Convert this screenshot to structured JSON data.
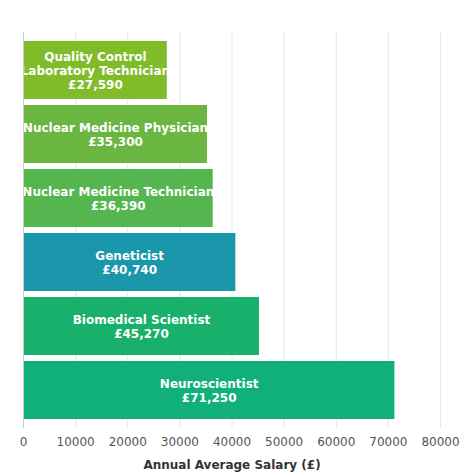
{
  "chart_data": {
    "type": "bar",
    "orientation": "horizontal",
    "categories": [
      "Quality Control Laboratory Technician",
      "Nuclear Medicine Physician",
      "Nuclear Medicine Technician",
      "Geneticist",
      "Biomedical Scientist",
      "Neuroscientist"
    ],
    "values": [
      27590,
      35300,
      36390,
      40740,
      45270,
      71250
    ],
    "value_labels": [
      "£27,590",
      "£35,300",
      "£36,390",
      "£40,740",
      "£45,270",
      "£71,250"
    ],
    "colors": [
      "#80bb2a",
      "#6bb541",
      "#55b54f",
      "#1b97ab",
      "#18b06b",
      "#11b07a"
    ],
    "x_label": "Annual Average Salary (£)",
    "xlim": [
      0,
      80000
    ],
    "xticks": [
      0,
      10000,
      20000,
      30000,
      40000,
      50000,
      60000,
      70000,
      80000
    ],
    "grid": true,
    "data_labels": true,
    "tick_labels": "x"
  }
}
